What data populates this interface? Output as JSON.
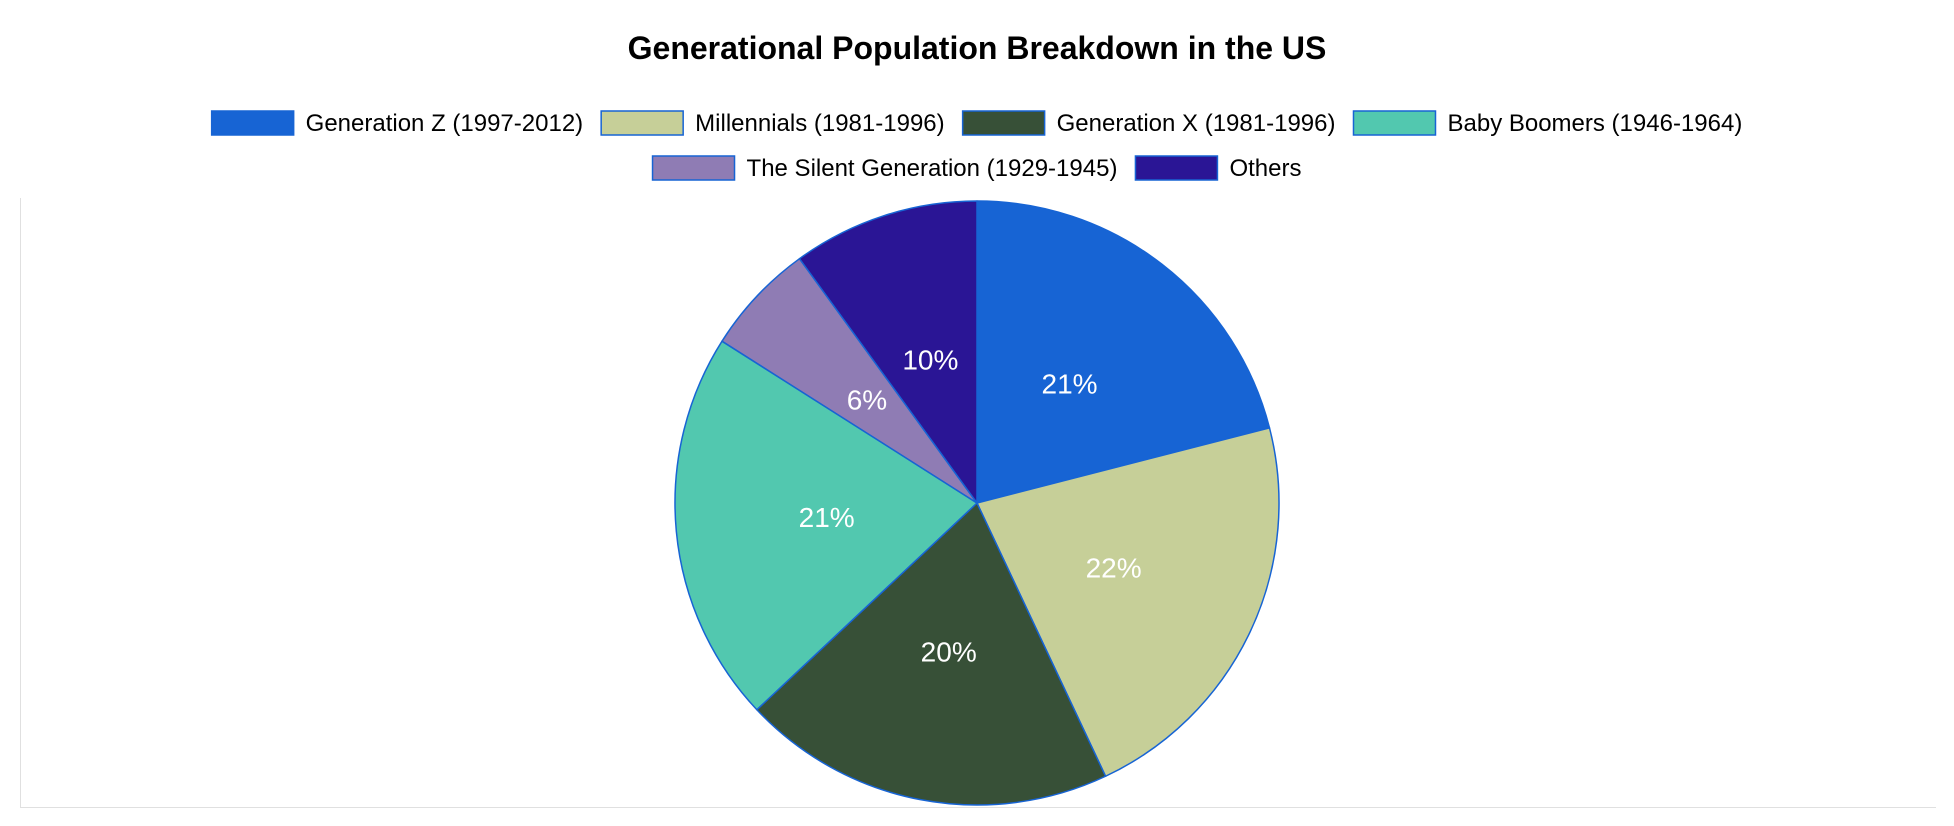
{
  "chart_data": {
    "type": "pie",
    "title": "Generational Population Breakdown in the US",
    "categories": [
      "Generation Z (1997-2012)",
      "Millennials (1981-1996)",
      "Generation X (1981-1996)",
      "Baby Boomers (1946-1964)",
      "The Silent Generation (1929-1945)",
      "Others"
    ],
    "values": [
      21,
      22,
      20,
      21,
      6,
      10
    ],
    "data_labels": [
      "21%",
      "22%",
      "20%",
      "21%",
      "6%",
      "10%"
    ],
    "colors": [
      "#1764d4",
      "#c6cf98",
      "#375037",
      "#52c8af",
      "#8f7cb4",
      "#2a1595"
    ],
    "slice_border_color": "#1764d4",
    "legend_position": "top",
    "start_angle_deg": 0,
    "direction": "clockwise"
  }
}
